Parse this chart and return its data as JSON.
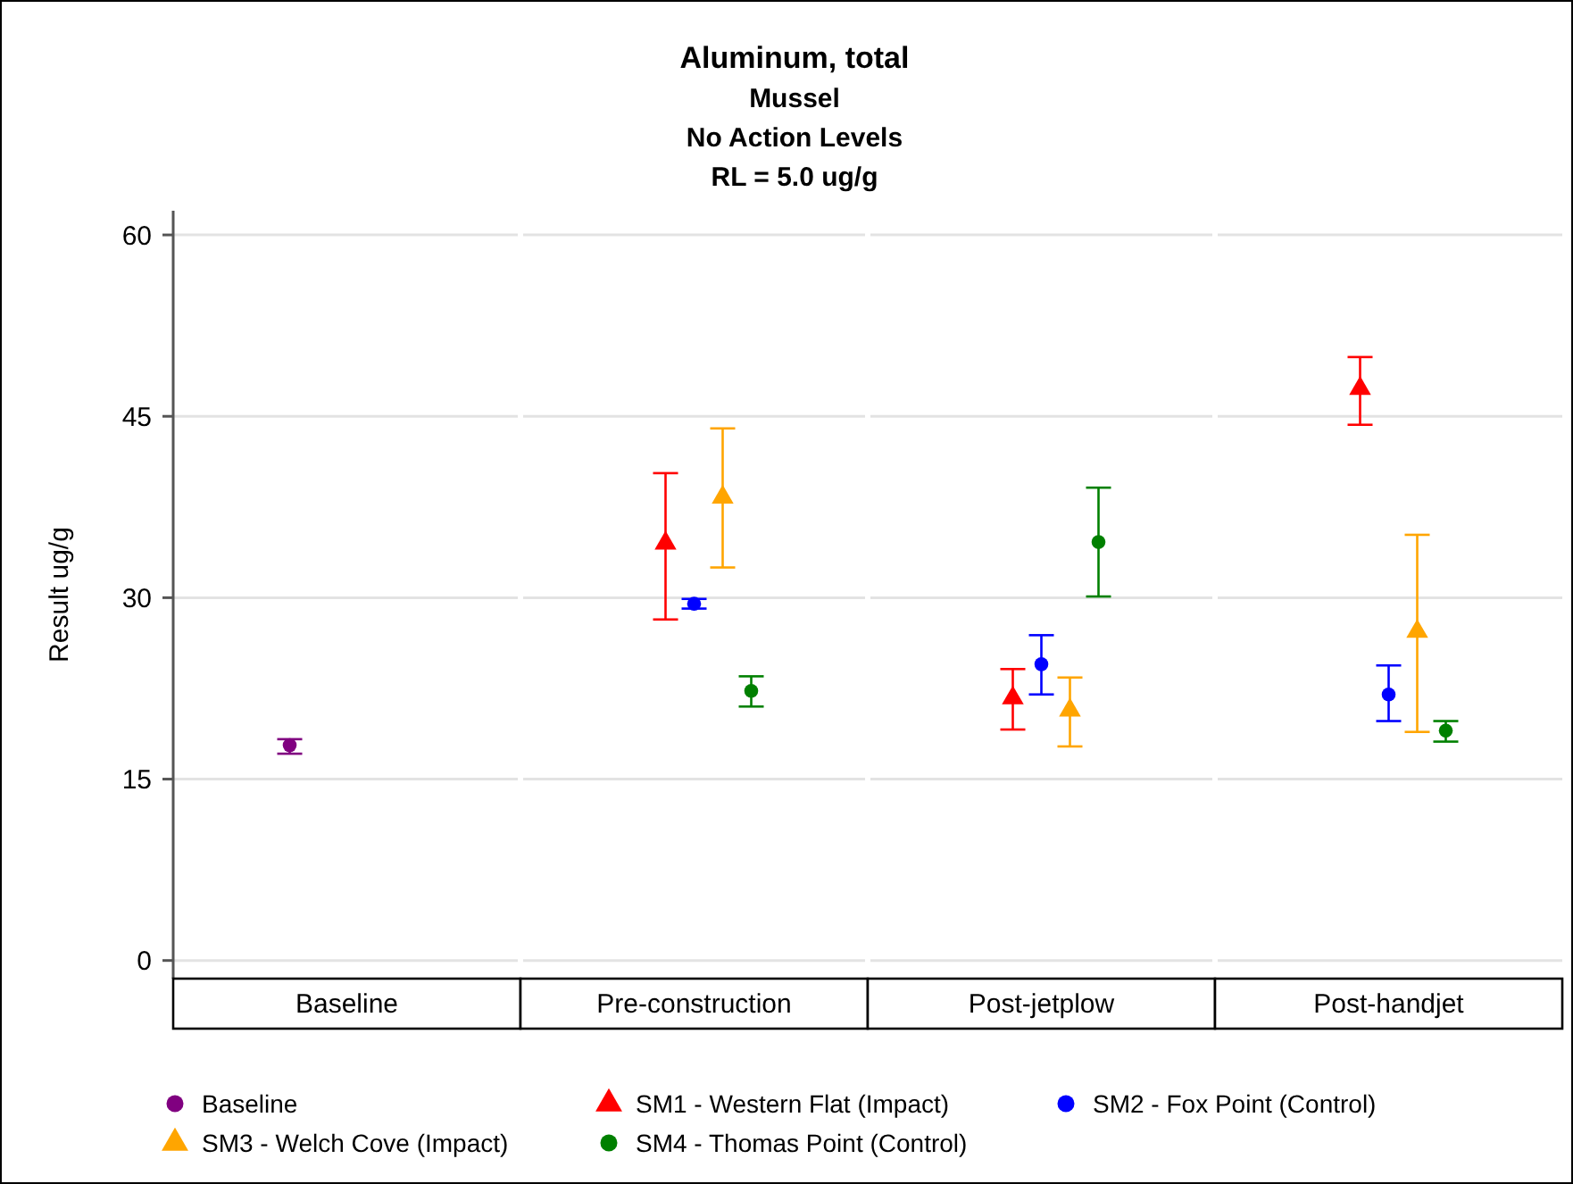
{
  "chart_data": {
    "type": "scatter",
    "title": "Aluminum, total",
    "subtitle": "Mussel\nNo Action Levels\nRL = 5.0 ug/g",
    "ylabel": "Result ug/g",
    "categories": [
      "Baseline",
      "Pre-construction",
      "Post-jetplow",
      "Post-handjet"
    ],
    "ylim": [
      -1.5,
      62
    ],
    "yticks": [
      0,
      15,
      30,
      45,
      60
    ],
    "grid": "y",
    "legend": "bottom",
    "series": [
      {
        "name": "Baseline",
        "color": "#800080",
        "marker": "circle",
        "values": [
          17.8,
          null,
          null,
          null
        ],
        "errors": [
          [
            17.1,
            18.3
          ],
          null,
          null,
          null
        ]
      },
      {
        "name": "SM1 - Western Flat (Impact)",
        "color": "#ff0000",
        "marker": "triangle",
        "values": [
          null,
          34.5,
          21.7,
          47.3
        ],
        "errors": [
          null,
          [
            28.2,
            40.3
          ],
          [
            19.1,
            24.1
          ],
          [
            44.3,
            49.9
          ]
        ]
      },
      {
        "name": "SM2 - Fox Point (Control)",
        "color": "#0000ff",
        "marker": "circle",
        "values": [
          null,
          29.5,
          24.5,
          22.0
        ],
        "errors": [
          null,
          [
            29.1,
            29.9
          ],
          [
            22.0,
            26.9
          ],
          [
            19.8,
            24.4
          ]
        ]
      },
      {
        "name": "SM3 - Welch Cove (Impact)",
        "color": "#ffa500",
        "marker": "triangle",
        "values": [
          null,
          38.3,
          20.7,
          27.2
        ],
        "errors": [
          null,
          [
            32.5,
            44.0
          ],
          [
            17.7,
            23.4
          ],
          [
            18.9,
            35.2
          ]
        ]
      },
      {
        "name": "SM4 - Thomas Point (Control)",
        "color": "#008000",
        "marker": "circle",
        "values": [
          null,
          22.3,
          34.6,
          19.0
        ],
        "errors": [
          null,
          [
            21.0,
            23.5
          ],
          [
            30.1,
            39.1
          ],
          [
            18.1,
            19.8
          ]
        ]
      }
    ]
  }
}
